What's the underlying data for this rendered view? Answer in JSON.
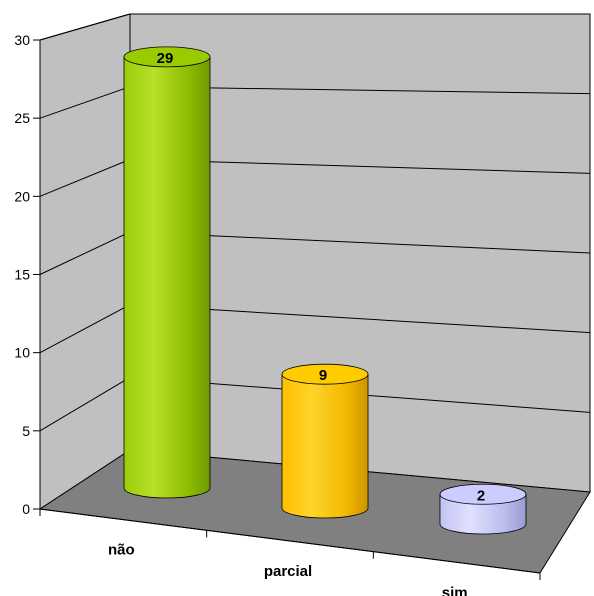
{
  "chart_data": {
    "type": "bar",
    "style": "3d-cylinder",
    "categories": [
      "não",
      "parcial",
      "sim"
    ],
    "values": [
      29,
      9,
      2
    ],
    "value_labels": [
      "29",
      "9",
      "2"
    ],
    "ylim": [
      0,
      30
    ],
    "yticks": [
      0,
      5,
      10,
      15,
      20,
      25,
      30
    ],
    "ytick_labels": [
      "0",
      "5",
      "10",
      "15",
      "20",
      "25",
      "30"
    ],
    "grid": true,
    "legend": "none",
    "colors": {
      "series": [
        "#99cc00",
        "#ffcc00",
        "#ccccff"
      ],
      "back_wall": "#c0c0c0",
      "floor": "#808080"
    }
  }
}
